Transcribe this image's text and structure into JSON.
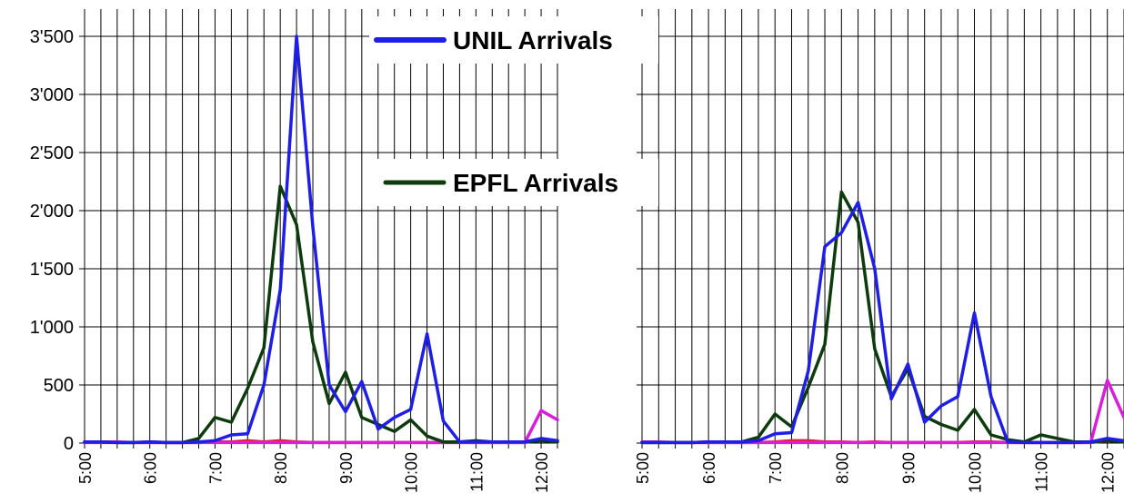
{
  "chart_data": [
    {
      "type": "line",
      "ylim": [
        0,
        3500
      ],
      "yticks": [
        "0",
        "500",
        "1'000",
        "1'500",
        "2'000",
        "2'500",
        "3'000",
        "3'500"
      ],
      "yvalues": [
        0,
        500,
        1000,
        1500,
        2000,
        2500,
        3000,
        3500
      ],
      "x_range": [
        "5:00",
        "12:15"
      ],
      "xticks": [
        "5:00",
        "6:00",
        "7:00",
        "8:00",
        "9:00",
        "10:00",
        "11:00",
        "12:00"
      ],
      "grid": true,
      "series": [
        {
          "name": "UNIL Arrivals",
          "color": "#1e1ee6",
          "x": [
            "5:00",
            "5:15",
            "5:30",
            "5:45",
            "6:00",
            "6:15",
            "6:30",
            "6:45",
            "7:00",
            "7:15",
            "7:30",
            "7:45",
            "8:00",
            "8:15",
            "8:30",
            "8:45",
            "9:00",
            "9:15",
            "9:30",
            "9:45",
            "10:00",
            "10:15",
            "10:30",
            "10:45",
            "11:00",
            "11:15",
            "11:30",
            "11:45",
            "12:00",
            "12:15"
          ],
          "values": [
            10,
            10,
            5,
            5,
            10,
            5,
            5,
            10,
            20,
            70,
            80,
            500,
            1320,
            3500,
            1860,
            500,
            270,
            530,
            120,
            220,
            290,
            940,
            190,
            10,
            10,
            10,
            10,
            10,
            40,
            20
          ]
        },
        {
          "name": "EPFL Arrivals",
          "color": "#0d3b0d",
          "x": [
            "5:00",
            "5:15",
            "5:30",
            "5:45",
            "6:00",
            "6:15",
            "6:30",
            "6:45",
            "7:00",
            "7:15",
            "7:30",
            "7:45",
            "8:00",
            "8:15",
            "8:30",
            "8:45",
            "9:00",
            "9:15",
            "9:30",
            "9:45",
            "10:00",
            "10:15",
            "10:30",
            "10:45",
            "11:00",
            "11:15",
            "11:30",
            "11:45",
            "12:00",
            "12:15"
          ],
          "values": [
            10,
            10,
            5,
            5,
            10,
            5,
            5,
            40,
            220,
            180,
            470,
            820,
            2210,
            1880,
            870,
            340,
            610,
            220,
            160,
            100,
            200,
            60,
            10,
            10,
            20,
            10,
            10,
            10,
            20,
            10
          ]
        },
        {
          "color": "#e6202a",
          "x": [
            "5:00",
            "5:15",
            "5:30",
            "5:45",
            "6:00",
            "6:15",
            "6:30",
            "6:45",
            "7:00",
            "7:15",
            "7:30",
            "7:45",
            "8:00",
            "8:15",
            "8:30",
            "8:45",
            "9:00",
            "9:15",
            "9:30",
            "9:45",
            "10:00",
            "10:15",
            "10:30",
            "10:45",
            "11:00",
            "11:15",
            "11:30",
            "11:45",
            "12:00",
            "12:15"
          ],
          "values": [
            5,
            5,
            5,
            5,
            5,
            5,
            5,
            5,
            10,
            10,
            20,
            10,
            20,
            10,
            5,
            5,
            5,
            5,
            5,
            5,
            5,
            5,
            5,
            5,
            5,
            5,
            5,
            5,
            30,
            20
          ]
        },
        {
          "color": "#d81ed8",
          "x": [
            "5:00",
            "5:15",
            "5:30",
            "5:45",
            "6:00",
            "6:15",
            "6:30",
            "6:45",
            "7:00",
            "7:15",
            "7:30",
            "7:45",
            "8:00",
            "8:15",
            "8:30",
            "8:45",
            "9:00",
            "9:15",
            "9:30",
            "9:45",
            "10:00",
            "10:15",
            "10:30",
            "10:45",
            "11:00",
            "11:15",
            "11:30",
            "11:45",
            "12:00",
            "12:15"
          ],
          "values": [
            10,
            10,
            10,
            5,
            5,
            5,
            5,
            5,
            5,
            5,
            5,
            5,
            5,
            5,
            5,
            5,
            5,
            5,
            5,
            5,
            5,
            5,
            5,
            5,
            5,
            5,
            5,
            5,
            280,
            200
          ]
        }
      ]
    },
    {
      "type": "line",
      "ylim": [
        0,
        3500
      ],
      "yvalues": [
        0,
        500,
        1000,
        1500,
        2000,
        2500,
        3000,
        3500
      ],
      "x_range": [
        "5:00",
        "12:15"
      ],
      "xticks": [
        "5:00",
        "6:00",
        "7:00",
        "8:00",
        "9:00",
        "10:00",
        "11:00",
        "12:00"
      ],
      "grid": true,
      "series": [
        {
          "name": "UNIL Arrivals",
          "color": "#1e1ee6",
          "x": [
            "5:00",
            "5:15",
            "5:30",
            "5:45",
            "6:00",
            "6:15",
            "6:30",
            "6:45",
            "7:00",
            "7:15",
            "7:30",
            "7:45",
            "8:00",
            "8:15",
            "8:30",
            "8:45",
            "9:00",
            "9:15",
            "9:30",
            "9:45",
            "10:00",
            "10:15",
            "10:30",
            "10:45",
            "11:00",
            "11:15",
            "11:30",
            "11:45",
            "12:00",
            "12:15"
          ],
          "values": [
            5,
            5,
            5,
            5,
            10,
            10,
            10,
            20,
            80,
            90,
            620,
            1690,
            1810,
            2070,
            1500,
            380,
            680,
            180,
            320,
            400,
            1120,
            400,
            10,
            5,
            5,
            5,
            5,
            10,
            40,
            20
          ]
        },
        {
          "name": "EPFL Arrivals",
          "color": "#0d3b0d",
          "x": [
            "5:00",
            "5:15",
            "5:30",
            "5:45",
            "6:00",
            "6:15",
            "6:30",
            "6:45",
            "7:00",
            "7:15",
            "7:30",
            "7:45",
            "8:00",
            "8:15",
            "8:30",
            "8:45",
            "9:00",
            "9:15",
            "9:30",
            "9:45",
            "10:00",
            "10:15",
            "10:30",
            "10:45",
            "11:00",
            "11:15",
            "11:30",
            "11:45",
            "12:00",
            "12:15"
          ],
          "values": [
            5,
            5,
            5,
            5,
            10,
            10,
            10,
            50,
            250,
            140,
            480,
            850,
            2160,
            1900,
            810,
            400,
            640,
            230,
            160,
            110,
            290,
            70,
            30,
            10,
            70,
            40,
            10,
            10,
            20,
            10
          ]
        },
        {
          "color": "#e6202a",
          "x": [
            "5:00",
            "5:15",
            "5:30",
            "5:45",
            "6:00",
            "6:15",
            "6:30",
            "6:45",
            "7:00",
            "7:15",
            "7:30",
            "7:45",
            "8:00",
            "8:15",
            "8:30",
            "8:45",
            "9:00",
            "9:15",
            "9:30",
            "9:45",
            "10:00",
            "10:15",
            "10:30",
            "10:45",
            "11:00",
            "11:15",
            "11:30",
            "11:45",
            "12:00",
            "12:15"
          ],
          "values": [
            5,
            5,
            5,
            5,
            5,
            5,
            5,
            5,
            10,
            20,
            20,
            10,
            10,
            5,
            10,
            5,
            5,
            5,
            5,
            5,
            10,
            10,
            5,
            5,
            5,
            5,
            5,
            5,
            20,
            20
          ]
        },
        {
          "color": "#d81ed8",
          "x": [
            "5:00",
            "5:15",
            "5:30",
            "5:45",
            "6:00",
            "6:15",
            "6:30",
            "6:45",
            "7:00",
            "7:15",
            "7:30",
            "7:45",
            "8:00",
            "8:15",
            "8:30",
            "8:45",
            "9:00",
            "9:15",
            "9:30",
            "9:45",
            "10:00",
            "10:15",
            "10:30",
            "10:45",
            "11:00",
            "11:15",
            "11:30",
            "11:45",
            "12:00",
            "12:15"
          ],
          "values": [
            10,
            10,
            5,
            5,
            5,
            5,
            5,
            5,
            5,
            5,
            5,
            5,
            5,
            5,
            5,
            5,
            5,
            5,
            5,
            5,
            5,
            5,
            5,
            5,
            5,
            5,
            5,
            5,
            540,
            220
          ]
        }
      ]
    }
  ],
  "legend": [
    {
      "label": "UNIL Arrivals",
      "color": "#1e1ee6"
    },
    {
      "label": "EPFL Arrivals",
      "color": "#0d3b0d"
    }
  ]
}
